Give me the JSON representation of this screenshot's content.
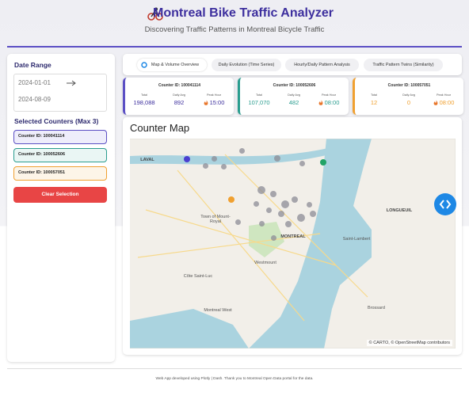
{
  "header": {
    "title": "Montreal Bike Traffic Analyzer",
    "subtitle": "Discovering Traffic Patterns in Montreal Bicycle Traffic"
  },
  "sidebar": {
    "date_range": {
      "label": "Date Range",
      "start": "2024-01-01",
      "end": "2024-08-09"
    },
    "selected_label": "Selected Counters (Max 3)",
    "counters": [
      "Counter ID: 100041114",
      "Counter ID: 100052606",
      "Counter ID: 100057051"
    ],
    "clear_button": "Clear Selection"
  },
  "tabs": [
    "Map & Volume Overview",
    "Daily Evolution (Time Series)",
    "Hourly/Daily Pattern Analysis",
    "Traffic Pattern Twins (Similarity)"
  ],
  "cards": [
    {
      "title": "Counter ID: 100041114",
      "total_label": "Total",
      "total": "198,088",
      "avg_label": "Daily Avg",
      "avg": "892",
      "peak_label": "Peak Hour",
      "peak": "15:00"
    },
    {
      "title": "Counter ID: 100052606",
      "total_label": "Total",
      "total": "107,070",
      "avg_label": "Daily Avg",
      "avg": "482",
      "peak_label": "Peak Hour",
      "peak": "08:00"
    },
    {
      "title": "Counter ID: 100057051",
      "total_label": "Total",
      "total": "12",
      "avg_label": "Daily Avg",
      "avg": "0",
      "peak_label": "Peak Hour",
      "peak": "08:00"
    }
  ],
  "map": {
    "title": "Counter Map",
    "places": [
      "LAVAL",
      "LONGUEUIL",
      "Town of Mount-Royal",
      "MONTREAL",
      "Saint-Lambert",
      "Westmount",
      "Côte Saint-Luc",
      "Montreal West",
      "Brossard"
    ],
    "attribution": "© CARTO, © OpenStreetMap contributors"
  },
  "footer": "Web App developed using Plotly | Dash. Thank you to Montreal Open Data portal for the data."
}
